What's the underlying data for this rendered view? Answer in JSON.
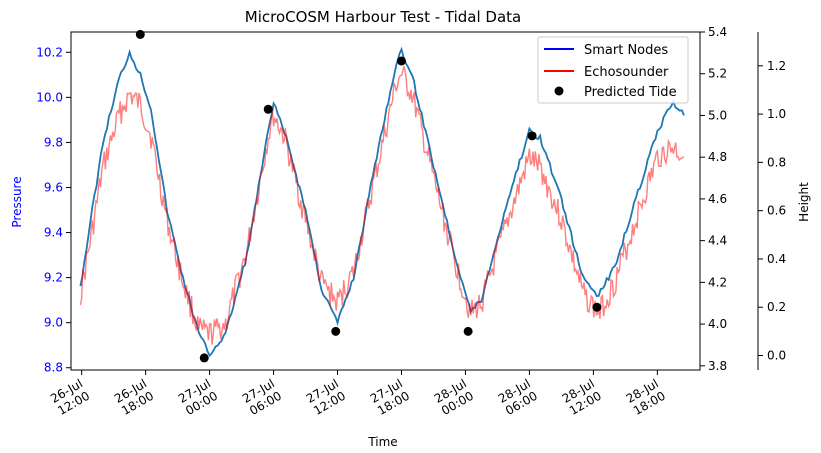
{
  "chart_data": {
    "type": "line",
    "title": "MicroCOSM Harbour Test - Tidal Data",
    "xlabel": "Time",
    "ylabel_left": "Pressure",
    "ylabel_right": "Height",
    "x_range": [
      "2021-07-26T11:00",
      "2021-07-28T22:00"
    ],
    "x_ticks": [
      {
        "t": "2021-07-26T12:00",
        "line1": "26-Jul",
        "line2": "12:00"
      },
      {
        "t": "2021-07-26T18:00",
        "line1": "26-Jul",
        "line2": "18:00"
      },
      {
        "t": "2021-07-27T00:00",
        "line1": "27-Jul",
        "line2": "00:00"
      },
      {
        "t": "2021-07-27T06:00",
        "line1": "27-Jul",
        "line2": "06:00"
      },
      {
        "t": "2021-07-27T12:00",
        "line1": "27-Jul",
        "line2": "12:00"
      },
      {
        "t": "2021-07-27T18:00",
        "line1": "27-Jul",
        "line2": "18:00"
      },
      {
        "t": "2021-07-28T00:00",
        "line1": "28-Jul",
        "line2": "00:00"
      },
      {
        "t": "2021-07-28T06:00",
        "line1": "28-Jul",
        "line2": "06:00"
      },
      {
        "t": "2021-07-28T12:00",
        "line1": "28-Jul",
        "line2": "12:00"
      },
      {
        "t": "2021-07-28T18:00",
        "line1": "28-Jul",
        "line2": "18:00"
      }
    ],
    "axes": {
      "pressure": {
        "ylim": [
          8.79,
          10.29
        ],
        "ticks": [
          "8.8",
          "9.0",
          "9.2",
          "9.4",
          "9.6",
          "9.8",
          "10.0",
          "10.2"
        ],
        "color": "#0000ff"
      },
      "echosounder": {
        "ylim": [
          3.78,
          5.4
        ],
        "ticks": [
          "3.8",
          "4.0",
          "4.2",
          "4.4",
          "4.6",
          "4.8",
          "5.0",
          "5.2",
          "5.4"
        ]
      },
      "height": {
        "ylim": [
          -0.06,
          1.34
        ],
        "ticks": [
          "0.0",
          "0.2",
          "0.4",
          "0.6",
          "0.8",
          "1.0",
          "1.2"
        ]
      }
    },
    "legend": {
      "placement": "top-right",
      "entries": [
        {
          "label": "Smart Nodes",
          "color": "#0000ff",
          "kind": "line"
        },
        {
          "label": "Echosounder",
          "color": "#ff0000",
          "kind": "line"
        },
        {
          "label": "Predicted Tide",
          "color": "#000000",
          "kind": "marker"
        }
      ]
    },
    "series": [
      {
        "series_label": "Smart Nodes",
        "axis": "pressure",
        "color": "#1f77b4",
        "points": [
          [
            "2021-07-26T11:53",
            9.16
          ],
          [
            "2021-07-26T13:00",
            9.5
          ],
          [
            "2021-07-26T14:00",
            9.8
          ],
          [
            "2021-07-26T15:30",
            10.08
          ],
          [
            "2021-07-26T16:30",
            10.2
          ],
          [
            "2021-07-26T17:30",
            10.1
          ],
          [
            "2021-07-26T18:30",
            9.95
          ],
          [
            "2021-07-26T20:00",
            9.5
          ],
          [
            "2021-07-26T21:30",
            9.2
          ],
          [
            "2021-07-26T23:00",
            8.95
          ],
          [
            "2021-07-27T00:00",
            8.86
          ],
          [
            "2021-07-27T01:30",
            8.95
          ],
          [
            "2021-07-27T03:30",
            9.3
          ],
          [
            "2021-07-27T05:30",
            9.85
          ],
          [
            "2021-07-27T06:00",
            9.97
          ],
          [
            "2021-07-27T07:00",
            9.85
          ],
          [
            "2021-07-27T09:00",
            9.5
          ],
          [
            "2021-07-27T10:30",
            9.15
          ],
          [
            "2021-07-27T12:00",
            9.0
          ],
          [
            "2021-07-27T13:30",
            9.2
          ],
          [
            "2021-07-27T15:30",
            9.7
          ],
          [
            "2021-07-27T17:30",
            10.15
          ],
          [
            "2021-07-27T18:00",
            10.2
          ],
          [
            "2021-07-27T19:00",
            10.1
          ],
          [
            "2021-07-27T21:00",
            9.7
          ],
          [
            "2021-07-27T23:00",
            9.3
          ],
          [
            "2021-07-28T00:30",
            9.05
          ],
          [
            "2021-07-28T01:30",
            9.1
          ],
          [
            "2021-07-28T04:00",
            9.55
          ],
          [
            "2021-07-28T06:00",
            9.85
          ],
          [
            "2021-07-28T07:00",
            9.82
          ],
          [
            "2021-07-28T09:00",
            9.55
          ],
          [
            "2021-07-28T11:00",
            9.2
          ],
          [
            "2021-07-28T12:30",
            9.12
          ],
          [
            "2021-07-28T14:00",
            9.25
          ],
          [
            "2021-07-28T16:00",
            9.55
          ],
          [
            "2021-07-28T18:00",
            9.85
          ],
          [
            "2021-07-28T19:30",
            9.98
          ],
          [
            "2021-07-28T20:30",
            9.92
          ]
        ]
      },
      {
        "series_label": "Echosounder",
        "axis": "echosounder",
        "color": "#ff0000",
        "points": [
          [
            "2021-07-26T11:53",
            4.14
          ],
          [
            "2021-07-26T13:00",
            4.45
          ],
          [
            "2021-07-26T14:00",
            4.75
          ],
          [
            "2021-07-26T15:30",
            5.0
          ],
          [
            "2021-07-26T16:30",
            5.1
          ],
          [
            "2021-07-26T17:30",
            5.05
          ],
          [
            "2021-07-26T18:30",
            4.9
          ],
          [
            "2021-07-26T20:00",
            4.5
          ],
          [
            "2021-07-26T21:30",
            4.2
          ],
          [
            "2021-07-26T23:00",
            3.97
          ],
          [
            "2021-07-27T00:00",
            3.95
          ],
          [
            "2021-07-27T01:30",
            4.0
          ],
          [
            "2021-07-27T03:30",
            4.35
          ],
          [
            "2021-07-27T05:30",
            4.9
          ],
          [
            "2021-07-27T06:00",
            5.0
          ],
          [
            "2021-07-27T07:00",
            4.9
          ],
          [
            "2021-07-27T09:00",
            4.5
          ],
          [
            "2021-07-27T10:30",
            4.2
          ],
          [
            "2021-07-27T12:00",
            4.1
          ],
          [
            "2021-07-27T13:30",
            4.25
          ],
          [
            "2021-07-27T15:30",
            4.7
          ],
          [
            "2021-07-27T17:30",
            5.15
          ],
          [
            "2021-07-27T18:00",
            5.2
          ],
          [
            "2021-07-27T19:00",
            5.1
          ],
          [
            "2021-07-27T21:00",
            4.7
          ],
          [
            "2021-07-27T23:00",
            4.3
          ],
          [
            "2021-07-28T00:30",
            4.05
          ],
          [
            "2021-07-28T01:30",
            4.1
          ],
          [
            "2021-07-28T04:00",
            4.5
          ],
          [
            "2021-07-28T06:00",
            4.8
          ],
          [
            "2021-07-28T07:00",
            4.75
          ],
          [
            "2021-07-28T09:00",
            4.5
          ],
          [
            "2021-07-28T11:00",
            4.15
          ],
          [
            "2021-07-28T12:30",
            4.05
          ],
          [
            "2021-07-28T14:00",
            4.2
          ],
          [
            "2021-07-28T16:00",
            4.5
          ],
          [
            "2021-07-28T18:00",
            4.8
          ],
          [
            "2021-07-28T19:30",
            4.85
          ],
          [
            "2021-07-28T20:30",
            4.8
          ]
        ]
      },
      {
        "series_label": "Predicted Tide",
        "axis": "height",
        "color": "#000000",
        "kind": "scatter",
        "points": [
          [
            "2021-07-26T17:30",
            1.33
          ],
          [
            "2021-07-26T23:30",
            -0.01
          ],
          [
            "2021-07-27T05:30",
            1.02
          ],
          [
            "2021-07-27T11:50",
            0.1
          ],
          [
            "2021-07-27T18:00",
            1.22
          ],
          [
            "2021-07-28T00:15",
            0.1
          ],
          [
            "2021-07-28T06:15",
            0.91
          ],
          [
            "2021-07-28T12:20",
            0.2
          ]
        ]
      }
    ]
  }
}
